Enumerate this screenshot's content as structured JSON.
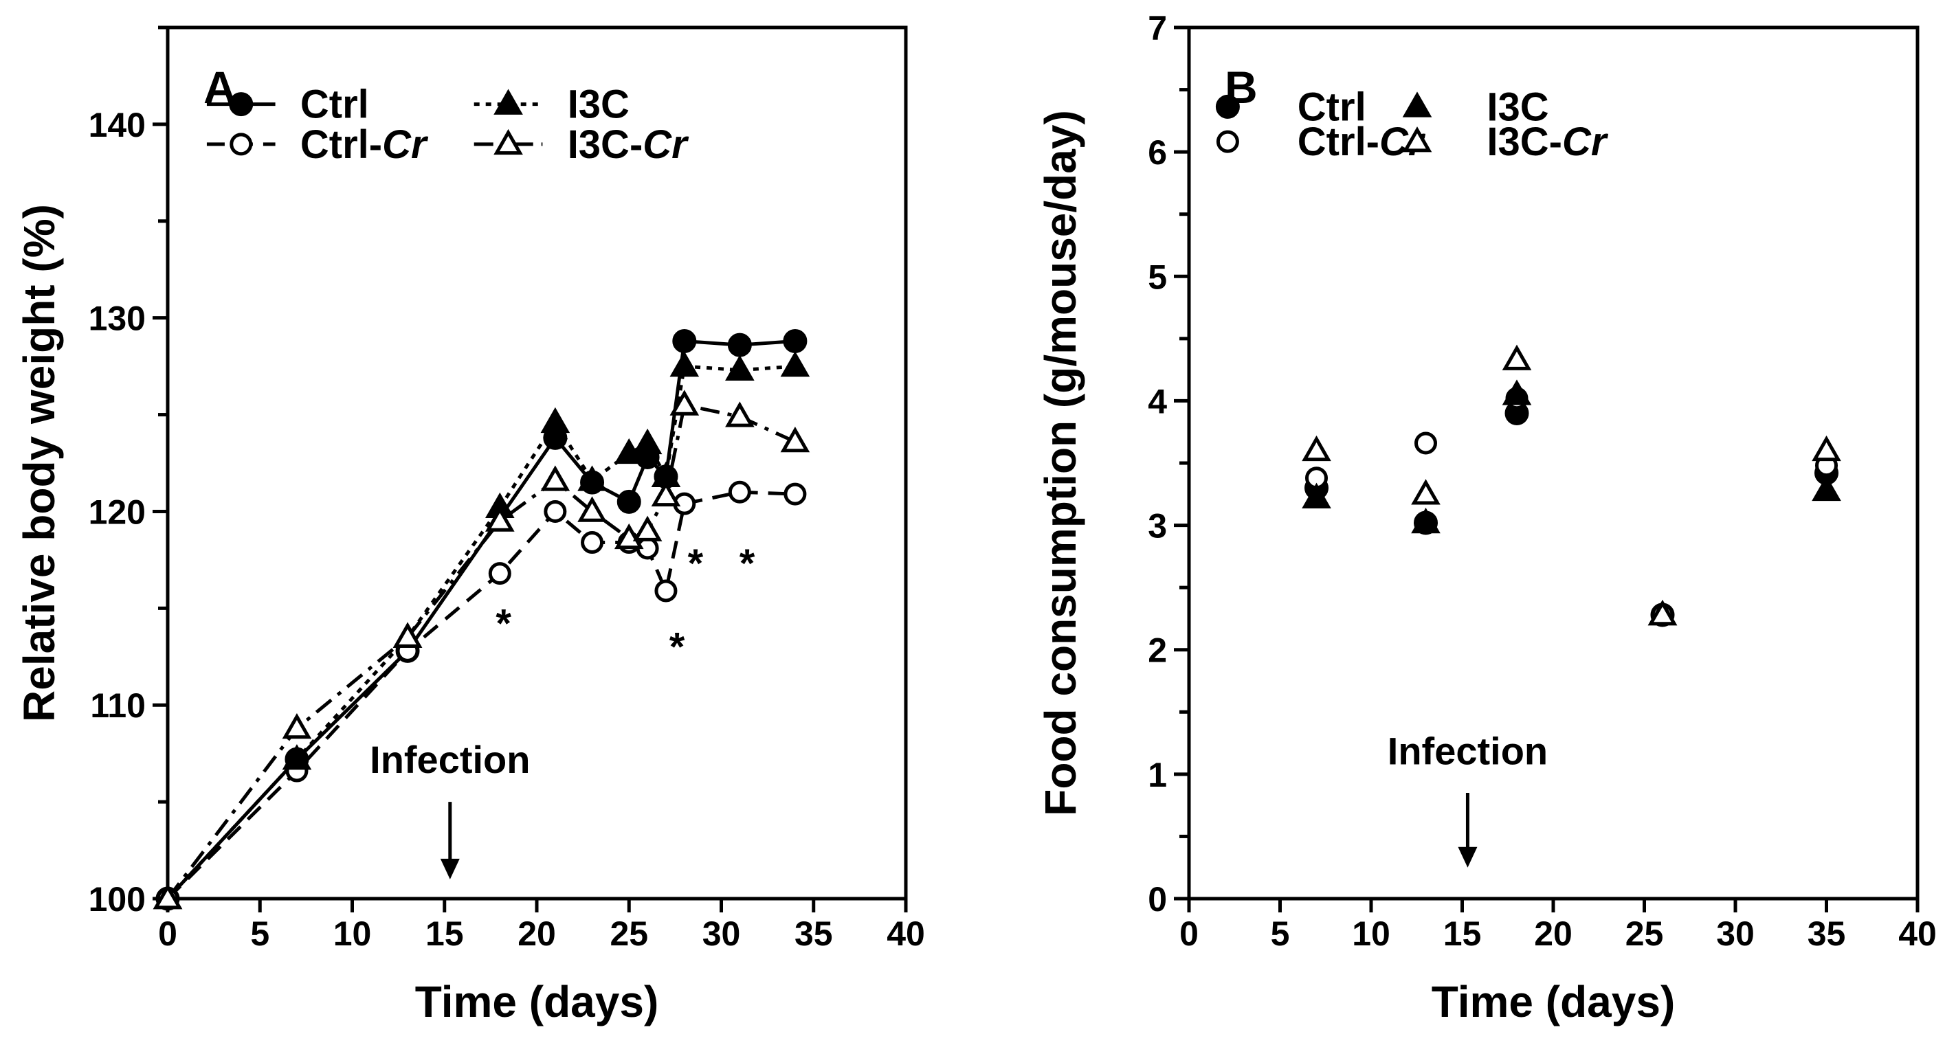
{
  "chart_data": [
    {
      "type": "line",
      "panel_label": "A",
      "title": "",
      "xlabel": "Time (days)",
      "ylabel": "Relative body weight (%)",
      "xlim": [
        0,
        40
      ],
      "ylim": [
        100,
        145
      ],
      "xticks": [
        0,
        5,
        10,
        15,
        20,
        25,
        30,
        35,
        40
      ],
      "xtick_labels": [
        "0",
        "5",
        "10",
        "15",
        "20",
        "25",
        "30",
        "35",
        "40"
      ],
      "yticks": [
        100,
        105,
        110,
        115,
        120,
        125,
        130,
        135,
        140,
        145
      ],
      "ytick_labels": [
        "100",
        "",
        "110",
        "",
        "120",
        "",
        "130",
        "",
        "140",
        ""
      ],
      "legend": {
        "position": "top-left",
        "entries": [
          {
            "label": "Ctrl",
            "label_suffix": "",
            "series": "Ctrl"
          },
          {
            "label": "Ctrl-",
            "label_suffix": "Cr",
            "series": "Ctrl-Cr"
          },
          {
            "label": "I3C",
            "label_suffix": "",
            "series": "I3C"
          },
          {
            "label": "I3C-",
            "label_suffix": "Cr",
            "series": "I3C-Cr"
          }
        ]
      },
      "series": [
        {
          "name": "Ctrl",
          "marker": "circle-filled",
          "dash": "solid",
          "x": [
            0,
            7,
            13,
            21,
            23,
            25,
            26,
            27,
            28,
            31,
            34
          ],
          "y": [
            100,
            107.2,
            112.8,
            123.8,
            121.5,
            120.5,
            122.8,
            121.8,
            128.8,
            128.6,
            128.8
          ]
        },
        {
          "name": "Ctrl-Cr",
          "marker": "circle-open",
          "dash": "dashed",
          "x": [
            0,
            7,
            13,
            18,
            21,
            23,
            25,
            26,
            27,
            28,
            31,
            34
          ],
          "y": [
            100,
            106.6,
            112.8,
            116.8,
            120.0,
            118.4,
            118.4,
            118.1,
            115.9,
            120.4,
            121.0,
            120.9
          ]
        },
        {
          "name": "I3C",
          "marker": "triangle-filled",
          "dash": "dotted",
          "x": [
            0,
            7,
            13,
            18,
            21,
            23,
            25,
            26,
            27,
            28,
            31,
            34
          ],
          "y": [
            100,
            107.2,
            113.5,
            120.2,
            124.6,
            121.6,
            123.0,
            123.5,
            121.8,
            127.5,
            127.3,
            127.5
          ]
        },
        {
          "name": "I3C-Cr",
          "marker": "triangle-open",
          "dash": "dash-dot",
          "x": [
            0,
            7,
            13,
            18,
            21,
            23,
            25,
            26,
            27,
            28,
            31,
            34
          ],
          "y": [
            100,
            108.8,
            113.5,
            119.5,
            121.6,
            120.0,
            118.6,
            119.0,
            120.8,
            125.5,
            124.9,
            123.6
          ]
        }
      ],
      "annotations": [
        {
          "text": "*",
          "x": 18.2,
          "y": 113.5
        },
        {
          "text": "*",
          "x": 27.6,
          "y": 112.3
        },
        {
          "text": "*",
          "x": 28.6,
          "y": 116.6
        },
        {
          "text": "*",
          "x": 31.4,
          "y": 116.6
        },
        {
          "text": "Infection",
          "x": 15.3,
          "y": 106.5,
          "type": "label"
        }
      ],
      "arrow": {
        "x": 15.3,
        "y_from": 105.0,
        "y_to": 101.0
      }
    },
    {
      "type": "scatter",
      "panel_label": "B",
      "title": "",
      "xlabel": "Time (days)",
      "ylabel": "Food consumption (g/mouse/day)",
      "xlim": [
        0,
        40
      ],
      "ylim": [
        0,
        7
      ],
      "xticks": [
        0,
        5,
        10,
        15,
        20,
        25,
        30,
        35,
        40
      ],
      "xtick_labels": [
        "0",
        "5",
        "10",
        "15",
        "20",
        "25",
        "30",
        "35",
        "40"
      ],
      "yticks": [
        0,
        0.5,
        1,
        1.5,
        2,
        2.5,
        3,
        3.5,
        4,
        4.5,
        5,
        5.5,
        6,
        6.5,
        7
      ],
      "ytick_labels": [
        "0",
        "",
        "1",
        "",
        "2",
        "",
        "3",
        "",
        "4",
        "",
        "5",
        "",
        "6",
        "",
        "7"
      ],
      "legend": {
        "position": "top-left",
        "entries": [
          {
            "label": "Ctrl",
            "label_suffix": "",
            "series": "Ctrl"
          },
          {
            "label": "Ctrl-",
            "label_suffix": "Cr",
            "series": "Ctrl-Cr"
          },
          {
            "label": "I3C",
            "label_suffix": "",
            "series": "I3C"
          },
          {
            "label": "I3C-",
            "label_suffix": "Cr",
            "series": "I3C-Cr"
          }
        ]
      },
      "series": [
        {
          "name": "Ctrl",
          "marker": "circle-filled",
          "x": [
            7,
            13,
            18,
            26,
            35
          ],
          "y": [
            3.3,
            3.02,
            3.9,
            2.28,
            3.42
          ]
        },
        {
          "name": "Ctrl-Cr",
          "marker": "circle-open",
          "x": [
            7,
            13,
            18,
            26,
            35
          ],
          "y": [
            3.38,
            3.66,
            4.02,
            2.28,
            3.48
          ]
        },
        {
          "name": "I3C",
          "marker": "triangle-filled",
          "x": [
            7,
            13,
            18,
            26,
            35
          ],
          "y": [
            3.22,
            3.02,
            4.05,
            2.28,
            3.28
          ]
        },
        {
          "name": "I3C-Cr",
          "marker": "triangle-open",
          "x": [
            7,
            13,
            18,
            26,
            35
          ],
          "y": [
            3.6,
            3.25,
            4.33,
            2.28,
            3.6
          ]
        }
      ],
      "annotations": [
        {
          "text": "Infection",
          "x": 15.3,
          "y": 1.08,
          "type": "label"
        }
      ],
      "arrow": {
        "x": 15.3,
        "y_from": 0.85,
        "y_to": 0.25
      }
    }
  ]
}
